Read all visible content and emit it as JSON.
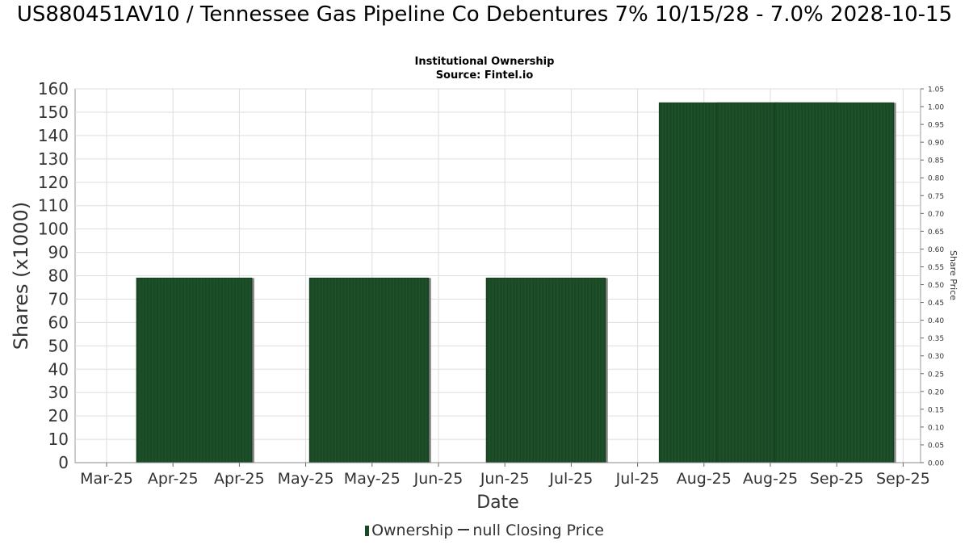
{
  "chart_data": {
    "type": "bar",
    "title": "US880451AV10 / Tennessee Gas Pipeline Co Debentures 7% 10/15/28 - 7.0% 2028-10-15",
    "subtitle_lines": [
      "Institutional Ownership",
      "Source: Fintel.io"
    ],
    "xlabel": "Date",
    "ylabel": "Shares (x1000)",
    "y2label": "Share Price",
    "x_tick_labels": [
      "Mar-25",
      "Apr-25",
      "Apr-25",
      "May-25",
      "May-25",
      "Jun-25",
      "Jun-25",
      "Jul-25",
      "Jul-25",
      "Aug-25",
      "Aug-25",
      "Sep-25",
      "Sep-25"
    ],
    "ylim": [
      0,
      160
    ],
    "y_ticks": [
      0,
      10,
      20,
      30,
      40,
      50,
      60,
      70,
      80,
      90,
      100,
      110,
      120,
      130,
      140,
      150,
      160
    ],
    "y2lim": [
      0,
      1.05
    ],
    "y2_ticks": [
      "0.00",
      "0.05",
      "0.10",
      "0.15",
      "0.20",
      "0.25",
      "0.30",
      "0.35",
      "0.40",
      "0.45",
      "0.50",
      "0.55",
      "0.60",
      "0.65",
      "0.70",
      "0.75",
      "0.80",
      "0.85",
      "0.90",
      "0.95",
      "1.00",
      "1.05"
    ],
    "grid": true,
    "bars": [
      {
        "start": "2025-03-31",
        "end": "2025-04-30",
        "value": 79
      },
      {
        "start": "2025-05-15",
        "end": "2025-06-15",
        "value": 79
      },
      {
        "start": "2025-06-30",
        "end": "2025-07-31",
        "value": 79
      },
      {
        "start": "2025-08-14",
        "end": "2025-09-14",
        "value": 154
      },
      {
        "start": "2025-08-29",
        "end": "2025-09-29",
        "value": 154
      },
      {
        "start": "2025-09-13",
        "end": "2025-10-14",
        "value": 154
      }
    ],
    "series": [
      {
        "name": "Ownership",
        "color": "#1a4a25"
      },
      {
        "name": "null Closing Price",
        "color": "#333333"
      }
    ],
    "legend_position": "bottom"
  }
}
